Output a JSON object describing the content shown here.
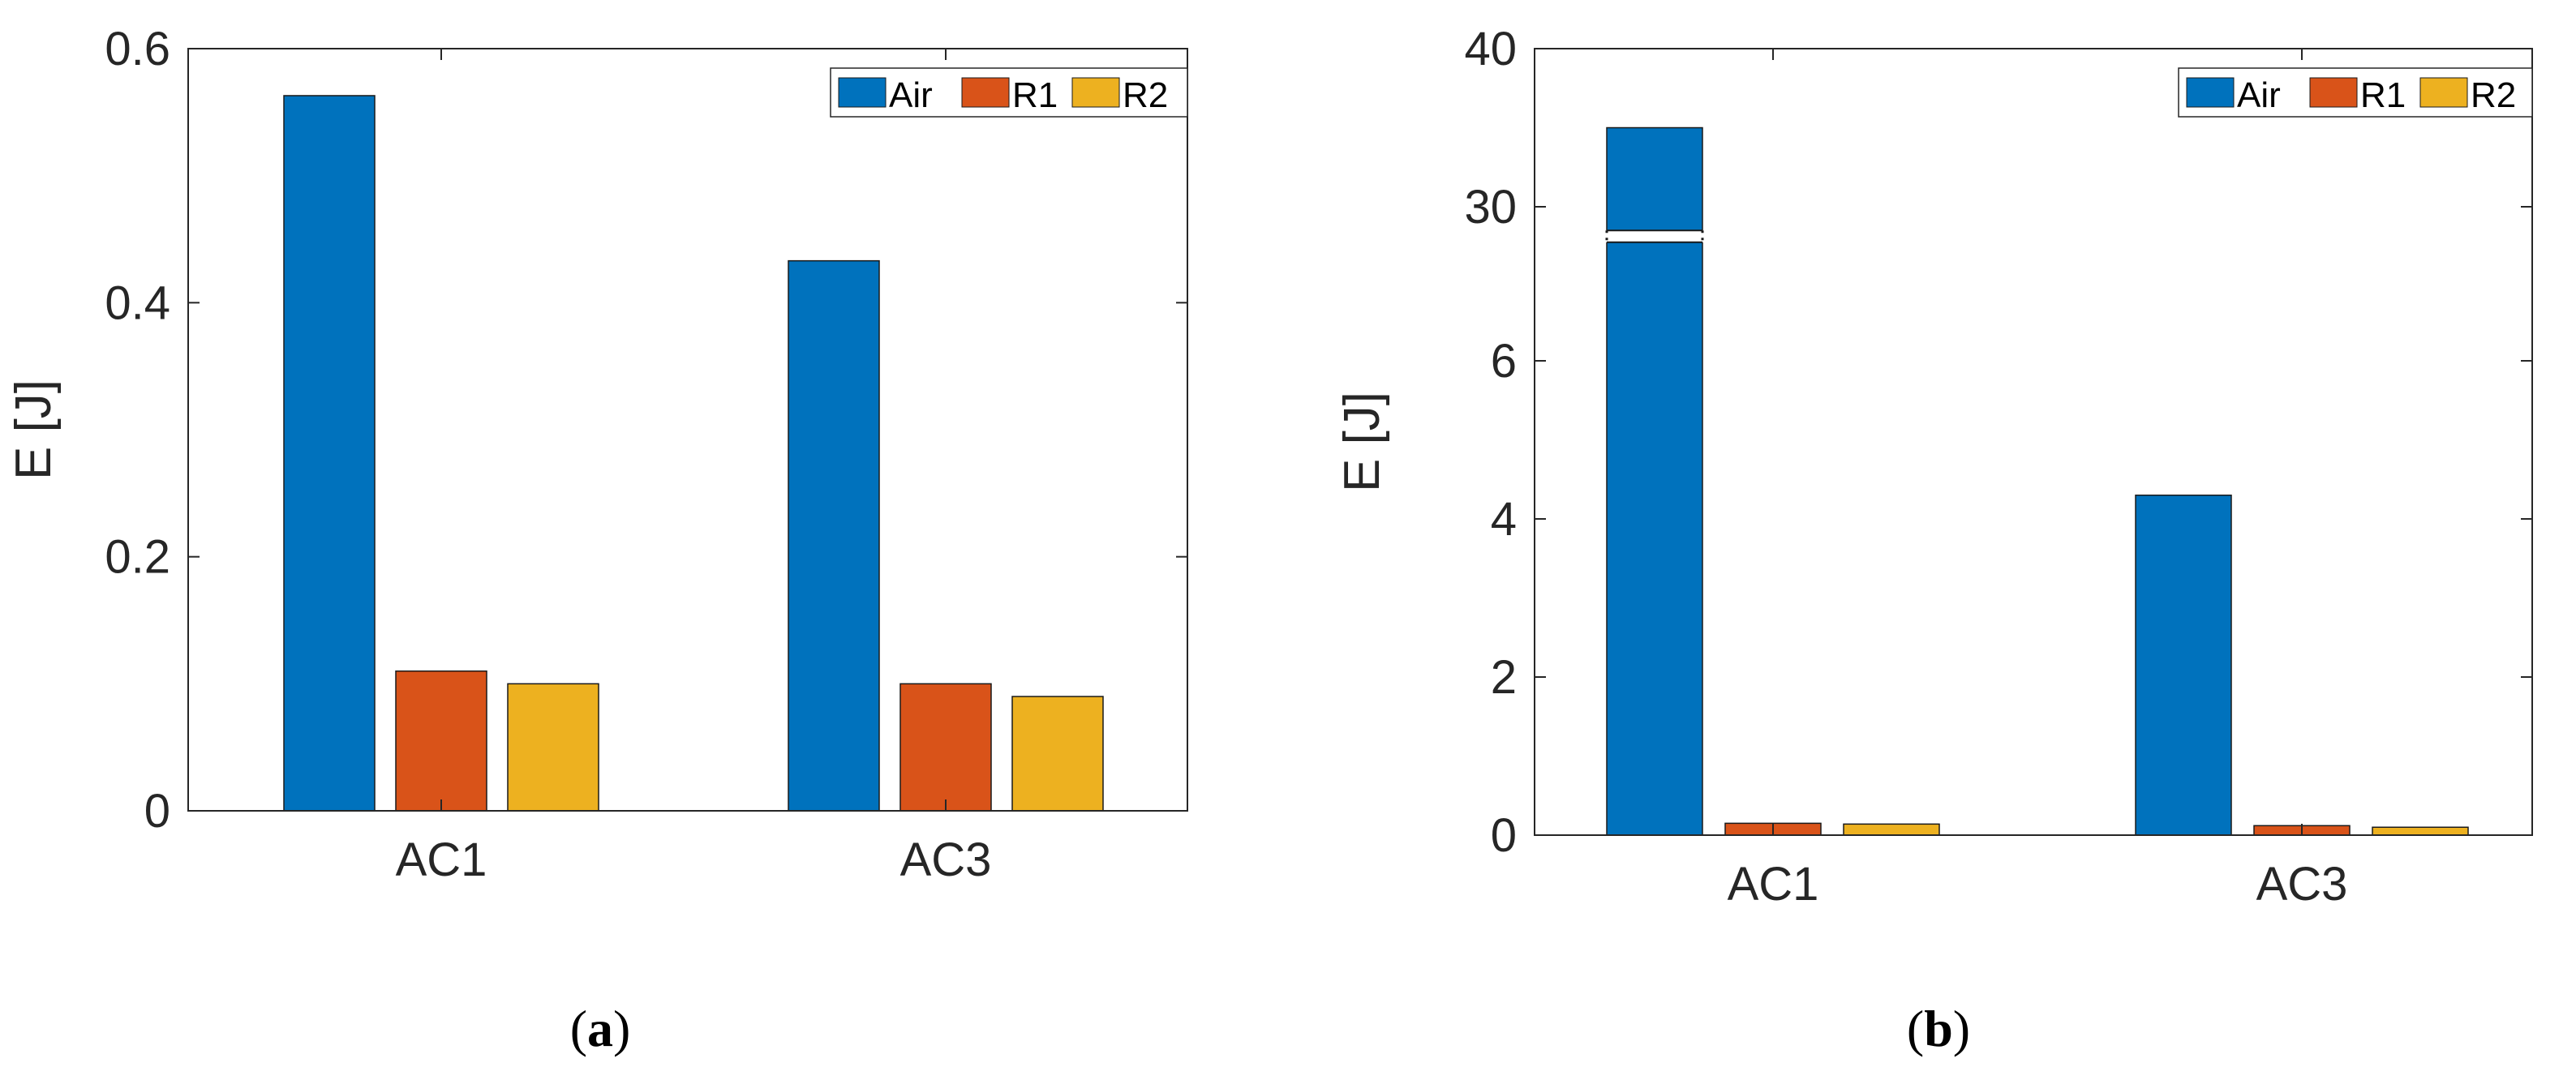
{
  "chart_data": [
    {
      "type": "bar",
      "panel_label": "(a)",
      "categories": [
        "AC1",
        "AC3"
      ],
      "series": [
        {
          "name": "Air",
          "values": [
            0.563,
            0.433
          ],
          "color": "#0072BD"
        },
        {
          "name": "R1",
          "values": [
            0.11,
            0.1
          ],
          "color": "#D95319"
        },
        {
          "name": "R2",
          "values": [
            0.1,
            0.09
          ],
          "color": "#EDB120"
        }
      ],
      "ylabel": "E [J]",
      "ylim": [
        0,
        0.6
      ],
      "yticks": [
        0,
        0.2,
        0.4,
        0.6
      ],
      "ytick_labels": [
        "0",
        "0.2",
        "0.4",
        "0.6"
      ],
      "grid": false,
      "legend_position": "top-right",
      "legend_orientation": "horizontal"
    },
    {
      "type": "bar",
      "panel_label": "(b)",
      "axis_break": true,
      "axis_break_range": [
        7.5,
        28.5
      ],
      "categories": [
        "AC1",
        "AC3"
      ],
      "series": [
        {
          "name": "Air",
          "values": [
            35,
            4.3
          ],
          "color": "#0072BD"
        },
        {
          "name": "R1",
          "values": [
            0.15,
            0.12
          ],
          "color": "#D95319"
        },
        {
          "name": "R2",
          "values": [
            0.14,
            0.1
          ],
          "color": "#EDB120"
        }
      ],
      "ylabel": "E [J]",
      "ylim": [
        0,
        40
      ],
      "yticks": [
        0,
        2,
        4,
        6,
        30,
        40
      ],
      "ytick_labels": [
        "0",
        "2",
        "4",
        "6",
        "30",
        "40"
      ],
      "grid": false,
      "legend_position": "top-right",
      "legend_orientation": "horizontal"
    }
  ]
}
